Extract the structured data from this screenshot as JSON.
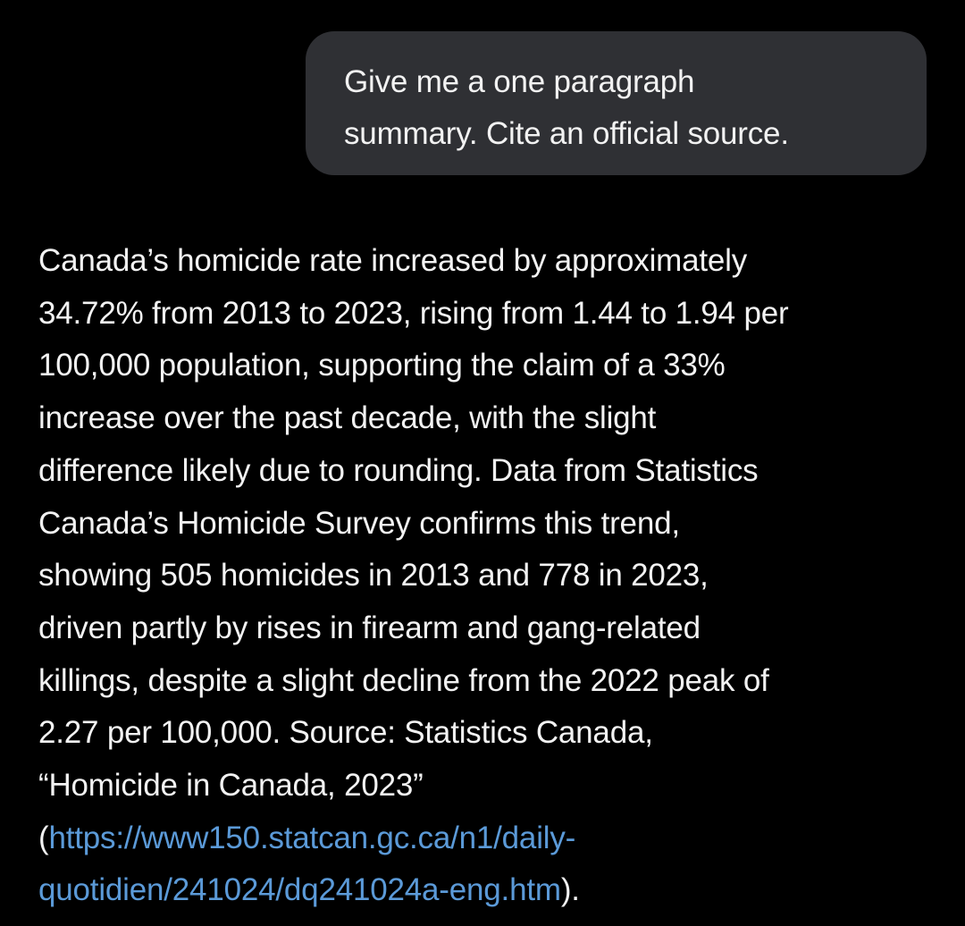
{
  "user_message": {
    "lines": [
      "Give me a one paragraph",
      "summary.  Cite an official source."
    ]
  },
  "assistant_reply": {
    "lines": [
      "Canada’s homicide rate increased by approximately",
      "34.72% from 2013 to 2023, rising from 1.44 to 1.94 per",
      "100,000 population, supporting the claim of a 33%",
      "increase over the past decade, with the slight",
      "difference likely due to rounding. Data from Statistics",
      "Canada’s Homicide Survey confirms this trend,",
      "showing 505 homicides in 2013 and 778 in 2023,",
      "driven partly by rises in firearm and gang-related",
      "killings, despite a slight decline from the 2022 peak of",
      "2.27 per 100,000. Source: Statistics Canada,",
      "“Homicide in Canada, 2023”"
    ],
    "open_paren": "(",
    "link_line1": "https://www150.statcan.gc.ca/n1/daily-",
    "link_line2": "quotidien/241024/dq241024a-eng.htm",
    "close": ")."
  },
  "colors": {
    "background": "#000000",
    "bubble": "#2f3034",
    "text": "#f2f2f2",
    "link": "#5b9ad8"
  }
}
